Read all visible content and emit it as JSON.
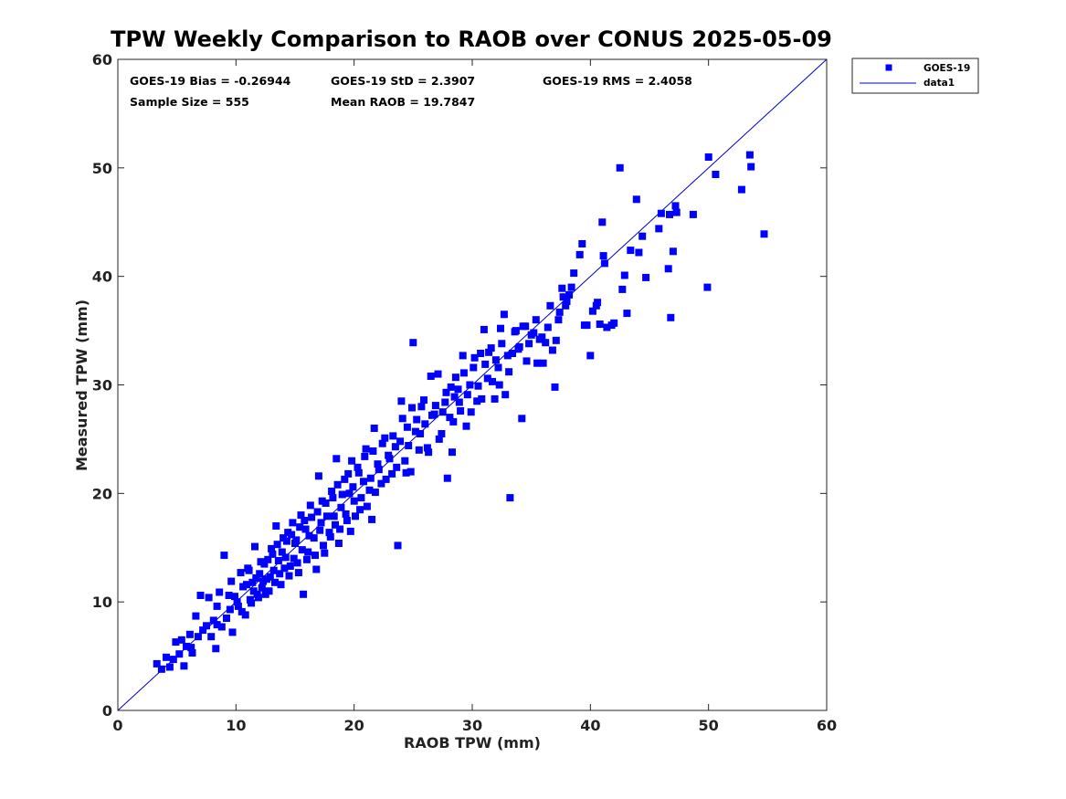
{
  "chart_data": {
    "type": "scatter",
    "title": "TPW Weekly Comparison to RAOB over CONUS 2025-05-09",
    "xlabel": "RAOB TPW (mm)",
    "ylabel": "Measured TPW (mm)",
    "xlim": [
      0,
      60
    ],
    "ylim": [
      0,
      60
    ],
    "xticks": [
      "0",
      "10",
      "20",
      "30",
      "40",
      "50",
      "60"
    ],
    "yticks": [
      "0",
      "10",
      "20",
      "30",
      "40",
      "50",
      "60"
    ],
    "grid": false,
    "legend_position": "outside-top-right",
    "colors": {
      "marker": "#0000ff",
      "line": "#0000cc",
      "axis": "#262626"
    },
    "stats": {
      "bias": "GOES-19 Bias = -0.26944",
      "std": "GOES-19 StD = 2.3907",
      "rms": "GOES-19 RMS = 2.4058",
      "sample": "Sample Size = 555",
      "mean": "Mean RAOB = 19.7847"
    },
    "series": [
      {
        "name": "GOES-19",
        "kind": "scatter",
        "marker": "square",
        "points": [
          [
            3.3,
            4.3
          ],
          [
            3.7,
            3.8
          ],
          [
            4.1,
            4.9
          ],
          [
            4.4,
            4.0
          ],
          [
            4.7,
            4.7
          ],
          [
            4.9,
            6.3
          ],
          [
            5.2,
            5.2
          ],
          [
            5.4,
            6.5
          ],
          [
            5.6,
            4.1
          ],
          [
            5.8,
            5.9
          ],
          [
            6.1,
            7.0
          ],
          [
            6.3,
            5.3
          ],
          [
            6.6,
            8.7
          ],
          [
            6.8,
            6.8
          ],
          [
            7.0,
            10.6
          ],
          [
            7.2,
            7.4
          ],
          [
            7.5,
            7.8
          ],
          [
            7.7,
            10.4
          ],
          [
            7.9,
            6.8
          ],
          [
            8.1,
            8.3
          ],
          [
            8.3,
            5.7
          ],
          [
            8.4,
            9.6
          ],
          [
            8.6,
            10.9
          ],
          [
            8.8,
            7.7
          ],
          [
            9.0,
            14.3
          ],
          [
            9.2,
            8.5
          ],
          [
            9.4,
            10.6
          ],
          [
            9.6,
            11.9
          ],
          [
            9.7,
            7.2
          ],
          [
            9.9,
            10.5
          ],
          [
            10.2,
            9.6
          ],
          [
            10.4,
            12.7
          ],
          [
            10.6,
            11.4
          ],
          [
            10.8,
            8.8
          ],
          [
            11.0,
            13.1
          ],
          [
            11.2,
            10.2
          ],
          [
            11.4,
            11.8
          ],
          [
            11.6,
            15.1
          ],
          [
            11.8,
            10.7
          ],
          [
            12.0,
            12.6
          ],
          [
            12.2,
            11.3
          ],
          [
            12.4,
            13.5
          ],
          [
            12.6,
            12.1
          ],
          [
            12.8,
            11.0
          ],
          [
            13.0,
            14.9
          ],
          [
            13.2,
            12.9
          ],
          [
            13.4,
            17.0
          ],
          [
            13.6,
            13.8
          ],
          [
            13.8,
            11.6
          ],
          [
            14.0,
            15.9
          ],
          [
            14.2,
            14.1
          ],
          [
            14.4,
            16.4
          ],
          [
            14.6,
            13.3
          ],
          [
            14.8,
            17.3
          ],
          [
            15.0,
            15.4
          ],
          [
            15.3,
            12.7
          ],
          [
            15.5,
            18.0
          ],
          [
            15.7,
            10.7
          ],
          [
            15.9,
            16.7
          ],
          [
            16.1,
            14.6
          ],
          [
            16.3,
            18.9
          ],
          [
            16.6,
            15.9
          ],
          [
            16.8,
            13.0
          ],
          [
            17.0,
            21.6
          ],
          [
            17.2,
            17.3
          ],
          [
            17.4,
            15.2
          ],
          [
            17.6,
            19.1
          ],
          [
            17.9,
            16.4
          ],
          [
            18.1,
            20.2
          ],
          [
            18.3,
            17.9
          ],
          [
            18.5,
            23.2
          ],
          [
            18.7,
            15.4
          ],
          [
            18.9,
            18.7
          ],
          [
            19.2,
            21.3
          ],
          [
            19.4,
            17.5
          ],
          [
            19.6,
            20.0
          ],
          [
            19.8,
            23.0
          ],
          [
            20.0,
            19.3
          ],
          [
            20.3,
            22.4
          ],
          [
            20.5,
            18.5
          ],
          [
            20.8,
            21.1
          ],
          [
            21.0,
            24.1
          ],
          [
            21.3,
            20.3
          ],
          [
            21.5,
            17.6
          ],
          [
            21.7,
            26.0
          ],
          [
            22.0,
            22.7
          ],
          [
            22.3,
            20.9
          ],
          [
            22.6,
            25.1
          ],
          [
            22.9,
            23.5
          ],
          [
            23.2,
            21.8
          ],
          [
            23.5,
            24.3
          ],
          [
            23.7,
            15.2
          ],
          [
            24.0,
            28.5
          ],
          [
            24.3,
            23.0
          ],
          [
            24.5,
            26.1
          ],
          [
            24.8,
            22.0
          ],
          [
            25.0,
            33.9
          ],
          [
            25.3,
            26.8
          ],
          [
            25.6,
            25.5
          ],
          [
            25.9,
            28.6
          ],
          [
            26.2,
            24.2
          ],
          [
            26.5,
            30.8
          ],
          [
            26.8,
            27.3
          ],
          [
            27.1,
            31.0
          ],
          [
            27.4,
            25.5
          ],
          [
            27.7,
            28.4
          ],
          [
            27.9,
            21.4
          ],
          [
            28.2,
            29.8
          ],
          [
            28.4,
            26.6
          ],
          [
            28.6,
            30.7
          ],
          [
            28.9,
            28.4
          ],
          [
            29.2,
            32.7
          ],
          [
            29.5,
            26.2
          ],
          [
            29.8,
            30.0
          ],
          [
            30.1,
            31.6
          ],
          [
            30.4,
            28.5
          ],
          [
            30.7,
            32.9
          ],
          [
            31.0,
            35.1
          ],
          [
            31.3,
            30.6
          ],
          [
            31.6,
            33.4
          ],
          [
            31.9,
            28.7
          ],
          [
            32.2,
            31.6
          ],
          [
            32.4,
            35.2
          ],
          [
            32.7,
            36.5
          ],
          [
            33.0,
            32.7
          ],
          [
            33.2,
            19.6
          ],
          [
            33.6,
            34.9
          ],
          [
            33.9,
            33.3
          ],
          [
            34.2,
            26.9
          ],
          [
            34.5,
            35.4
          ],
          [
            34.8,
            33.8
          ],
          [
            35.2,
            34.8
          ],
          [
            35.5,
            32.0
          ],
          [
            35.9,
            34.4
          ],
          [
            36.2,
            33.9
          ],
          [
            36.6,
            37.3
          ],
          [
            37.0,
            29.8
          ],
          [
            37.3,
            36.0
          ],
          [
            37.6,
            38.9
          ],
          [
            37.9,
            37.3
          ],
          [
            38.2,
            38.3
          ],
          [
            38.6,
            40.3
          ],
          [
            39.1,
            42.0
          ],
          [
            39.3,
            43.0
          ],
          [
            39.7,
            35.5
          ],
          [
            40.0,
            32.7
          ],
          [
            40.5,
            37.3
          ],
          [
            40.8,
            35.6
          ],
          [
            41.0,
            45.0
          ],
          [
            41.2,
            41.2
          ],
          [
            41.4,
            35.3
          ],
          [
            41.8,
            35.5
          ],
          [
            42.5,
            50.0
          ],
          [
            42.7,
            38.8
          ],
          [
            43.1,
            36.6
          ],
          [
            43.4,
            42.4
          ],
          [
            43.9,
            47.1
          ],
          [
            44.1,
            42.2
          ],
          [
            44.4,
            43.7
          ],
          [
            44.7,
            39.9
          ],
          [
            45.8,
            44.4
          ],
          [
            46.0,
            45.8
          ],
          [
            46.6,
            40.7
          ],
          [
            46.7,
            45.7
          ],
          [
            46.8,
            36.2
          ],
          [
            47.0,
            42.3
          ],
          [
            47.2,
            46.5
          ],
          [
            47.3,
            45.9
          ],
          [
            48.7,
            45.7
          ],
          [
            49.9,
            39.0
          ],
          [
            50.0,
            51.0
          ],
          [
            50.6,
            49.4
          ],
          [
            52.8,
            48.0
          ],
          [
            53.5,
            51.2
          ],
          [
            53.6,
            50.1
          ],
          [
            54.7,
            43.9
          ],
          [
            6.2,
            5.8
          ],
          [
            8.4,
            7.9
          ],
          [
            9.5,
            9.3
          ],
          [
            10.1,
            10.0
          ],
          [
            10.5,
            9.1
          ],
          [
            10.9,
            11.6
          ],
          [
            11.1,
            12.9
          ],
          [
            11.3,
            9.9
          ],
          [
            11.5,
            11.0
          ],
          [
            11.7,
            12.2
          ],
          [
            11.9,
            10.4
          ],
          [
            12.1,
            13.7
          ],
          [
            12.3,
            11.9
          ],
          [
            12.5,
            10.7
          ],
          [
            12.7,
            13.9
          ],
          [
            12.9,
            12.3
          ],
          [
            13.1,
            14.4
          ],
          [
            13.3,
            11.8
          ],
          [
            13.5,
            15.3
          ],
          [
            13.7,
            12.6
          ],
          [
            13.9,
            14.6
          ],
          [
            14.1,
            13.1
          ],
          [
            14.3,
            15.6
          ],
          [
            14.5,
            12.4
          ],
          [
            14.7,
            16.2
          ],
          [
            14.9,
            14.0
          ],
          [
            15.1,
            15.7
          ],
          [
            15.2,
            13.6
          ],
          [
            15.4,
            16.9
          ],
          [
            15.6,
            14.8
          ],
          [
            15.8,
            17.5
          ],
          [
            16.0,
            13.9
          ],
          [
            16.2,
            16.1
          ],
          [
            16.4,
            17.8
          ],
          [
            16.7,
            14.3
          ],
          [
            16.9,
            18.3
          ],
          [
            17.1,
            16.6
          ],
          [
            17.3,
            19.3
          ],
          [
            17.5,
            14.5
          ],
          [
            17.7,
            17.9
          ],
          [
            18.0,
            16.0
          ],
          [
            18.2,
            19.6
          ],
          [
            18.4,
            17.1
          ],
          [
            18.6,
            20.8
          ],
          [
            18.8,
            16.7
          ],
          [
            19.0,
            19.9
          ],
          [
            19.3,
            18.1
          ],
          [
            19.5,
            21.8
          ],
          [
            19.7,
            16.5
          ],
          [
            19.9,
            20.6
          ],
          [
            20.1,
            17.9
          ],
          [
            20.4,
            21.9
          ],
          [
            20.6,
            19.6
          ],
          [
            20.9,
            23.4
          ],
          [
            21.1,
            18.8
          ],
          [
            21.4,
            21.4
          ],
          [
            21.6,
            23.9
          ],
          [
            21.8,
            20.1
          ],
          [
            22.1,
            22.2
          ],
          [
            22.4,
            24.6
          ],
          [
            22.7,
            21.3
          ],
          [
            23.0,
            23.2
          ],
          [
            23.3,
            25.3
          ],
          [
            23.6,
            22.4
          ],
          [
            23.9,
            24.8
          ],
          [
            24.1,
            26.9
          ],
          [
            24.4,
            21.9
          ],
          [
            24.6,
            24.4
          ],
          [
            24.9,
            27.9
          ],
          [
            25.2,
            25.7
          ],
          [
            25.5,
            24.0
          ],
          [
            25.7,
            28.0
          ],
          [
            26.0,
            26.4
          ],
          [
            26.3,
            23.8
          ],
          [
            26.6,
            27.2
          ],
          [
            26.9,
            28.1
          ],
          [
            27.2,
            25.0
          ],
          [
            27.5,
            27.5
          ],
          [
            27.8,
            29.3
          ],
          [
            28.1,
            27.0
          ],
          [
            28.3,
            23.8
          ],
          [
            28.5,
            28.9
          ],
          [
            28.8,
            29.6
          ],
          [
            29.0,
            27.6
          ],
          [
            29.3,
            31.1
          ],
          [
            29.6,
            29.1
          ],
          [
            29.9,
            27.5
          ],
          [
            30.2,
            32.5
          ],
          [
            30.5,
            29.9
          ],
          [
            30.8,
            28.7
          ],
          [
            31.1,
            31.9
          ],
          [
            31.4,
            33.0
          ],
          [
            31.7,
            30.3
          ],
          [
            32.0,
            32.3
          ],
          [
            32.3,
            30.0
          ],
          [
            32.5,
            33.8
          ],
          [
            32.8,
            29.1
          ],
          [
            33.1,
            31.2
          ],
          [
            33.4,
            32.9
          ],
          [
            33.7,
            35.0
          ],
          [
            34.0,
            33.5
          ],
          [
            34.3,
            35.4
          ],
          [
            34.6,
            32.2
          ],
          [
            35.0,
            34.6
          ],
          [
            35.4,
            36.0
          ],
          [
            35.7,
            34.2
          ],
          [
            36.0,
            32.0
          ],
          [
            36.4,
            35.3
          ],
          [
            36.8,
            33.2
          ],
          [
            37.1,
            34.1
          ],
          [
            37.4,
            36.7
          ],
          [
            37.7,
            38.1
          ],
          [
            38.0,
            37.7
          ],
          [
            38.4,
            39.0
          ],
          [
            39.5,
            35.5
          ],
          [
            40.2,
            36.8
          ],
          [
            40.6,
            37.6
          ],
          [
            41.1,
            41.9
          ],
          [
            42.0,
            35.7
          ],
          [
            42.9,
            40.1
          ]
        ]
      },
      {
        "name": "data1",
        "kind": "line",
        "x": [
          0,
          60
        ],
        "y": [
          0,
          60
        ]
      }
    ]
  }
}
